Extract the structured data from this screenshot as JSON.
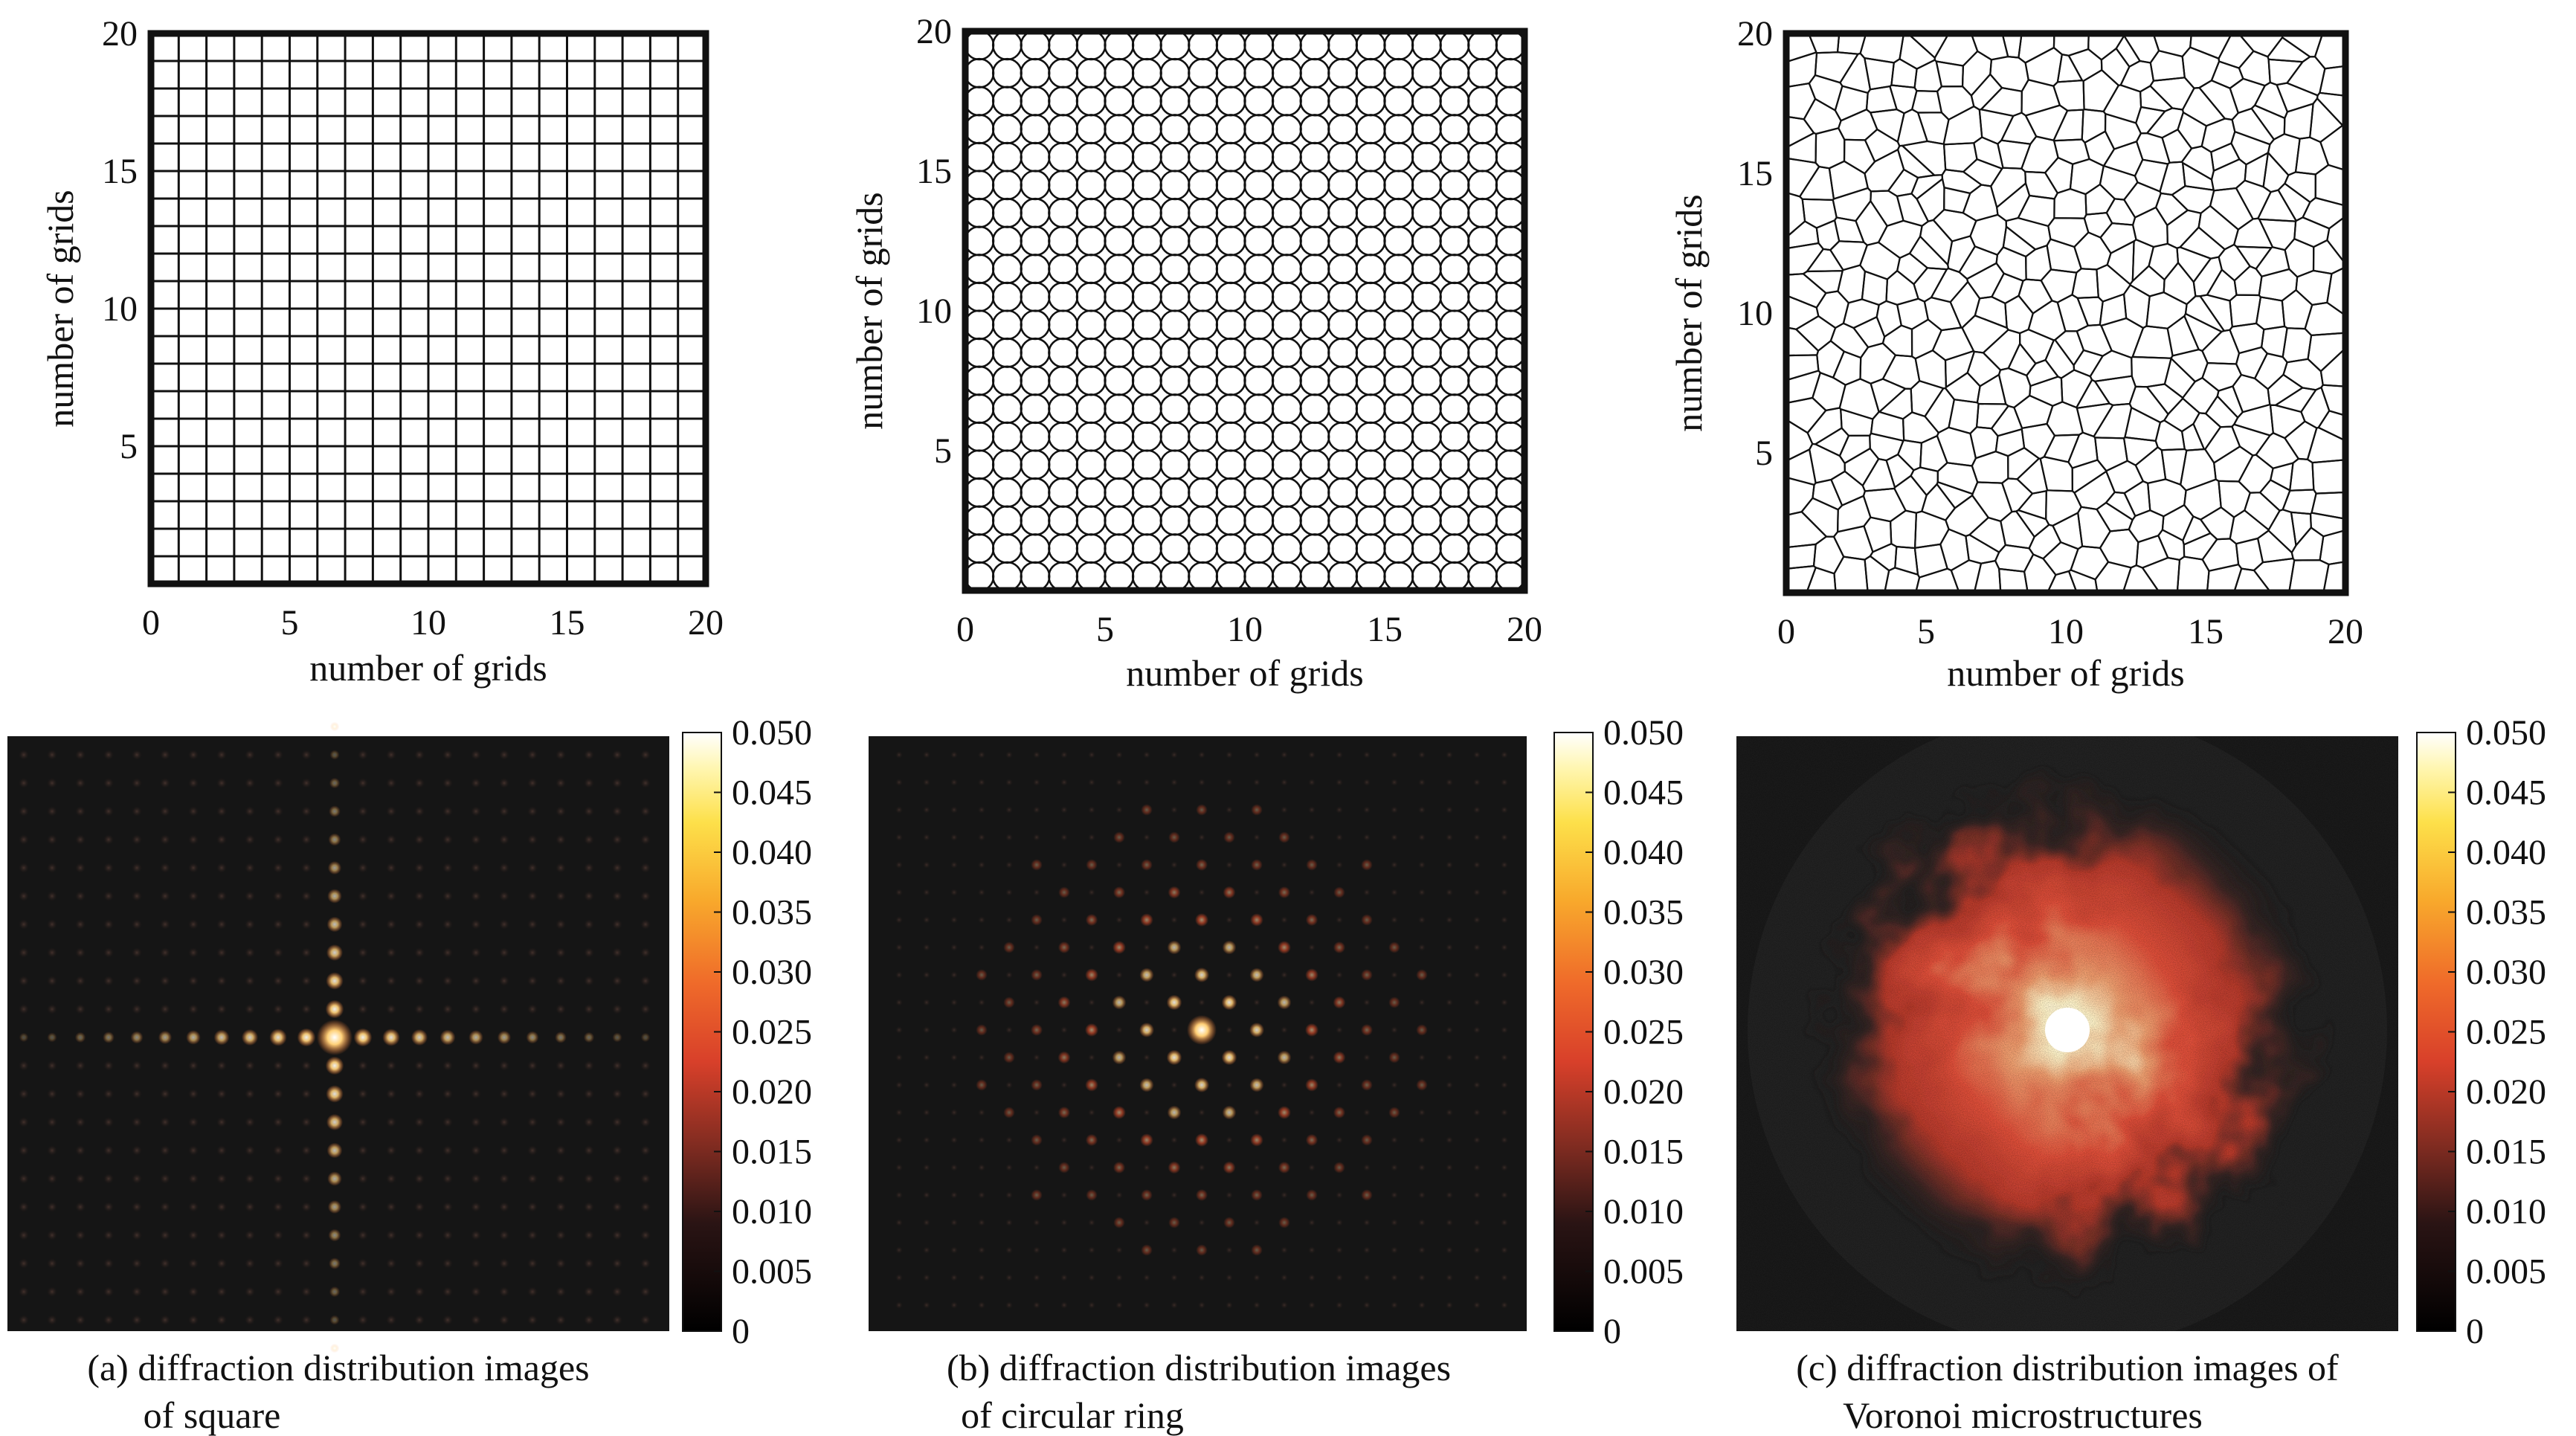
{
  "chart_data": [
    {
      "type": "mesh",
      "pattern": "square",
      "xlabel": "number of grids",
      "ylabel": "number of grids",
      "xlim": [
        0,
        20
      ],
      "ylim": [
        0,
        20
      ],
      "xticks": [
        "0",
        "5",
        "10",
        "15",
        "20"
      ],
      "yticks": [
        "5",
        "10",
        "15",
        "20"
      ]
    },
    {
      "type": "mesh",
      "pattern": "circular-ring",
      "xlabel": "number of grids",
      "ylabel": "number of grids",
      "xlim": [
        0,
        20
      ],
      "ylim": [
        0,
        20
      ],
      "xticks": [
        "0",
        "5",
        "10",
        "15",
        "20"
      ],
      "yticks": [
        "5",
        "10",
        "15",
        "20"
      ]
    },
    {
      "type": "mesh",
      "pattern": "voronoi",
      "xlabel": "number of grids",
      "ylabel": "number of grids",
      "xlim": [
        0,
        20
      ],
      "ylim": [
        0,
        20
      ],
      "xticks": [
        "0",
        "5",
        "10",
        "15",
        "20"
      ],
      "yticks": [
        "5",
        "10",
        "15",
        "20"
      ]
    },
    {
      "type": "heatmap",
      "pattern": "square",
      "caption_line1": "(a) diffraction  distribution images",
      "caption_line2": "of square",
      "colorbar_range": [
        0,
        0.05
      ],
      "colorbar_ticks": [
        "0.050",
        "0.045",
        "0.040",
        "0.035",
        "0.030",
        "0.025",
        "0.020",
        "0.015",
        "0.010",
        "0.005",
        "0"
      ]
    },
    {
      "type": "heatmap",
      "pattern": "circular-ring",
      "caption_line1": "(b) diffraction  distribution images",
      "caption_line2": "of circular ring",
      "colorbar_range": [
        0,
        0.05
      ],
      "colorbar_ticks": [
        "0.050",
        "0.045",
        "0.040",
        "0.035",
        "0.030",
        "0.025",
        "0.020",
        "0.015",
        "0.010",
        "0.005",
        "0"
      ]
    },
    {
      "type": "heatmap",
      "pattern": "voronoi",
      "caption_line1": "(c) diffraction  distribution images of",
      "caption_line2": "Voronoi microstructures",
      "colorbar_range": [
        0,
        0.05
      ],
      "colorbar_ticks": [
        "0.050",
        "0.045",
        "0.040",
        "0.035",
        "0.030",
        "0.025",
        "0.020",
        "0.015",
        "0.010",
        "0.005",
        "0"
      ]
    }
  ]
}
